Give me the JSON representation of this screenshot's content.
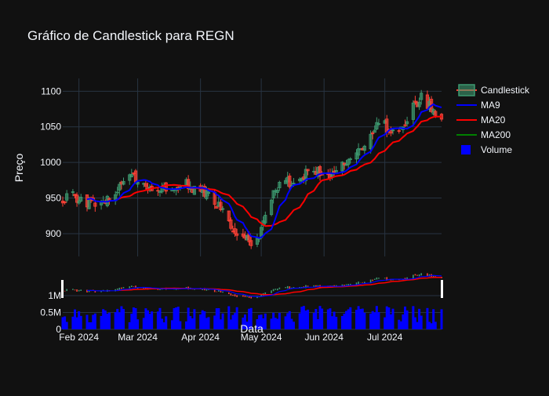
{
  "chart_data": {
    "type": "candlestick",
    "title": "Gráfico de Candlestick para REGN",
    "ylabel": "Preço",
    "xlabel": "Data",
    "ylim": [
      868,
      1118
    ],
    "yticks": [
      900,
      950,
      1000,
      1050,
      1100
    ],
    "volume_ylim": [
      0,
      1000000
    ],
    "volume_ticks": [
      {
        "value": 0,
        "label": "0"
      },
      {
        "value": 500000,
        "label": "0.5M"
      },
      {
        "value": 1000000,
        "label": "1M"
      }
    ],
    "x_range": [
      "2024-01-24",
      "2024-07-29"
    ],
    "x_ticks": [
      {
        "date": "2024-02-01",
        "label": "Feb 2024"
      },
      {
        "date": "2024-03-01",
        "label": "Mar 2024"
      },
      {
        "date": "2024-04-01",
        "label": "Apr 2024"
      },
      {
        "date": "2024-05-01",
        "label": "May 2024"
      },
      {
        "date": "2024-06-01",
        "label": "Jun 2024"
      },
      {
        "date": "2024-07-01",
        "label": "Jul 2024"
      }
    ],
    "legend": {
      "position": "top-right",
      "items": [
        {
          "name": "Candlestick",
          "type": "candle"
        },
        {
          "name": "MA9",
          "type": "line",
          "color": "#0000ff"
        },
        {
          "name": "MA20",
          "type": "line",
          "color": "#ff0000"
        },
        {
          "name": "MA200",
          "type": "line",
          "color": "#008000"
        },
        {
          "name": "Volume",
          "type": "box",
          "color": "#0000ff"
        }
      ]
    },
    "colors": {
      "up": "#3d9970",
      "down": "#ff4136",
      "ma9": "#0000ff",
      "ma20": "#ff0000",
      "volume": "#0000ff",
      "grid": "#283442"
    },
    "anchors": [
      [
        "2024-01-24",
        950
      ],
      [
        "2024-01-29",
        954
      ],
      [
        "2024-02-02",
        948
      ],
      [
        "2024-02-07",
        942
      ],
      [
        "2024-02-12",
        945
      ],
      [
        "2024-02-16",
        950
      ],
      [
        "2024-02-21",
        962
      ],
      [
        "2024-02-26",
        985
      ],
      [
        "2024-03-01",
        978
      ],
      [
        "2024-03-06",
        968
      ],
      [
        "2024-03-11",
        965
      ],
      [
        "2024-03-15",
        960
      ],
      [
        "2024-03-20",
        966
      ],
      [
        "2024-03-25",
        970
      ],
      [
        "2024-03-29",
        962
      ],
      [
        "2024-04-03",
        958
      ],
      [
        "2024-04-08",
        945
      ],
      [
        "2024-04-12",
        930
      ],
      [
        "2024-04-17",
        905
      ],
      [
        "2024-04-22",
        895
      ],
      [
        "2024-04-26",
        888
      ],
      [
        "2024-04-30",
        895
      ],
      [
        "2024-05-03",
        930
      ],
      [
        "2024-05-07",
        958
      ],
      [
        "2024-05-10",
        968
      ],
      [
        "2024-05-15",
        972
      ],
      [
        "2024-05-20",
        978
      ],
      [
        "2024-05-24",
        990
      ],
      [
        "2024-05-29",
        985
      ],
      [
        "2024-06-03",
        975
      ],
      [
        "2024-06-07",
        988
      ],
      [
        "2024-06-12",
        998
      ],
      [
        "2024-06-17",
        1012
      ],
      [
        "2024-06-21",
        1030
      ],
      [
        "2024-06-26",
        1050
      ],
      [
        "2024-07-01",
        1052
      ],
      [
        "2024-07-05",
        1045
      ],
      [
        "2024-07-10",
        1042
      ],
      [
        "2024-07-15",
        1078
      ],
      [
        "2024-07-19",
        1090
      ],
      [
        "2024-07-24",
        1075
      ],
      [
        "2024-07-29",
        1060
      ]
    ]
  }
}
